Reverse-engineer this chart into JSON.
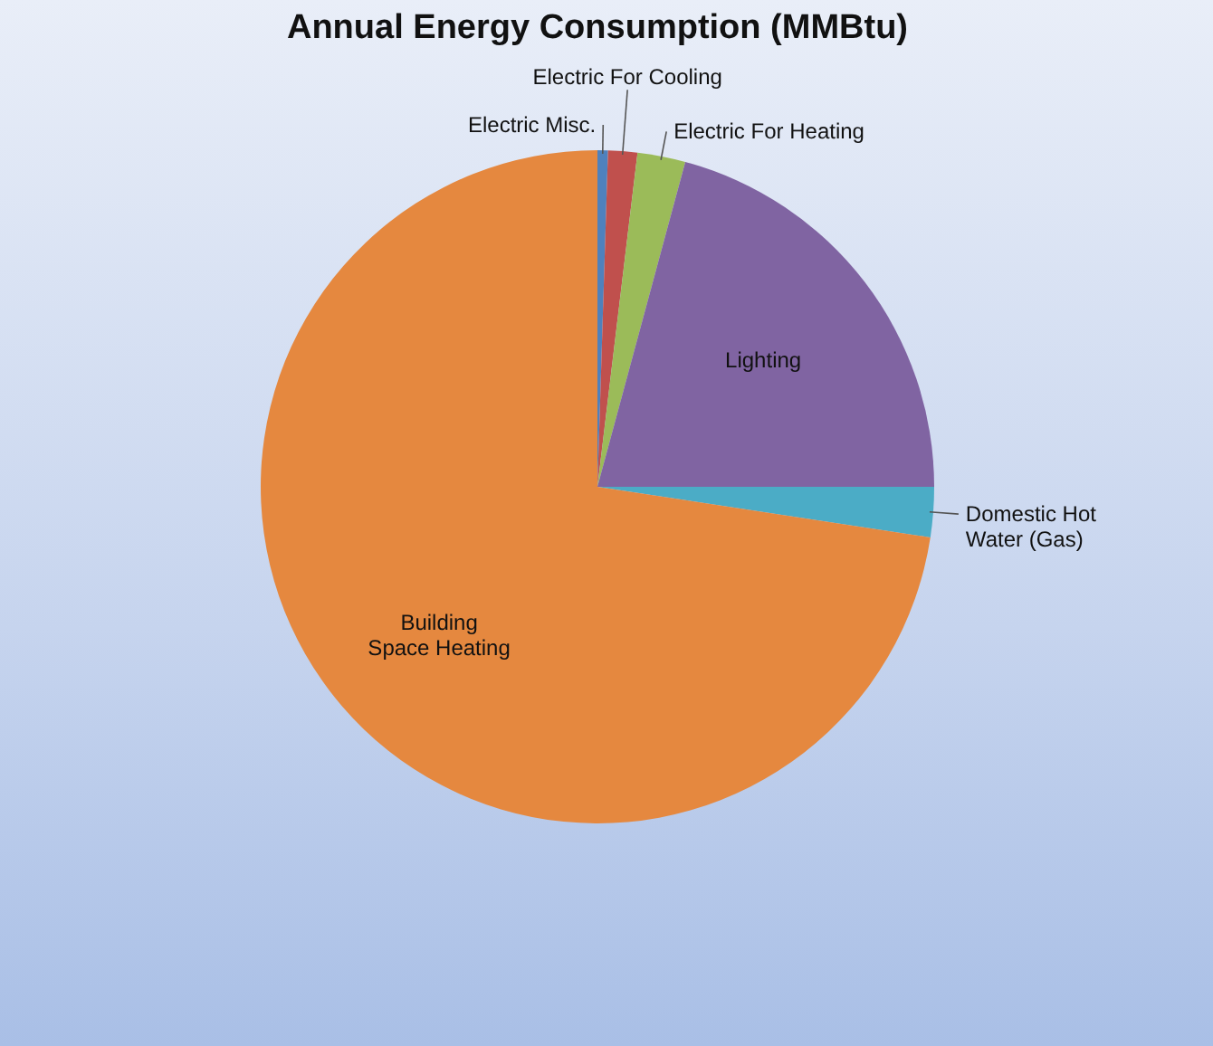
{
  "chart_data": {
    "type": "pie",
    "title": "Annual Energy Consumption (MMBtu)",
    "categories": [
      "Electric Misc.",
      "Electric For Cooling",
      "Electric For Heating",
      "Lighting",
      "Domestic Hot Water (Gas)",
      "Building Space Heating"
    ],
    "values": [
      0.5,
      1.4,
      2.3,
      20.8,
      2.4,
      72.6
    ],
    "colors": [
      "#4f81bd",
      "#c0504d",
      "#9bbb59",
      "#8064a2",
      "#4bacc6",
      "#e5883f"
    ],
    "legend": false
  }
}
